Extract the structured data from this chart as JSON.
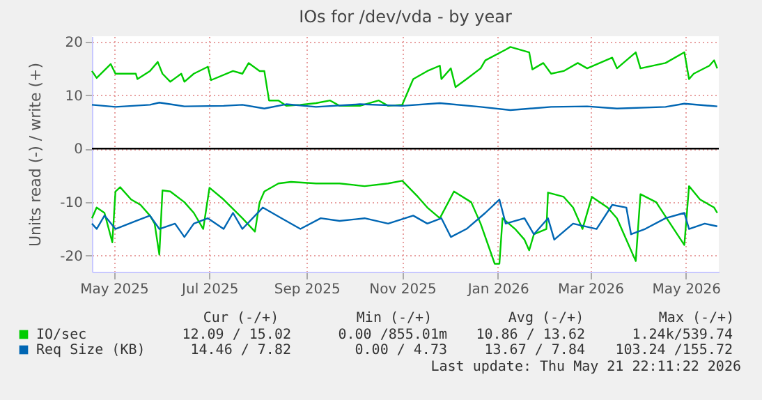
{
  "chart_data": {
    "type": "line",
    "title": "IOs for /dev/vda - by year",
    "ylabel": "Units read (-) / write (+)",
    "xlim": [
      "2025-04-17",
      "2026-05-22"
    ],
    "xticks": [
      {
        "value": "2025-05-01",
        "label": "May 2025"
      },
      {
        "value": "2025-07-01",
        "label": "Jul 2025"
      },
      {
        "value": "2025-09-01",
        "label": "Sep 2025"
      },
      {
        "value": "2025-11-01",
        "label": "Nov 2025"
      },
      {
        "value": "2026-01-01",
        "label": "Jan 2026"
      },
      {
        "value": "2026-03-01",
        "label": "Mar 2026"
      },
      {
        "value": "2026-05-01",
        "label": "May 2026"
      }
    ],
    "ylim": [
      -23,
      21
    ],
    "yticks": [
      -20,
      -10,
      0,
      10,
      20
    ],
    "grid": true,
    "legend": "bottom",
    "ref_lines": [
      {
        "axis": "y",
        "value": 0,
        "color": "#000000"
      }
    ],
    "series": [
      {
        "name": "IO/sec",
        "color": "#00cc00",
        "x": [
          "2025-04-17",
          "2025-04-20",
          "2025-04-29",
          "2025-05-02",
          "2025-05-15",
          "2025-05-16",
          "2025-05-24",
          "2025-05-29",
          "2025-06-01",
          "2025-06-06",
          "2025-06-13",
          "2025-06-15",
          "2025-06-21",
          "2025-06-30",
          "2025-07-02",
          "2025-07-16",
          "2025-07-22",
          "2025-07-26",
          "2025-08-02",
          "2025-08-05",
          "2025-08-08",
          "2025-08-14",
          "2025-08-19",
          "2025-08-28",
          "2025-09-07",
          "2025-09-16",
          "2025-09-22",
          "2025-10-05",
          "2025-10-17",
          "2025-10-23",
          "2025-11-01",
          "2025-11-08",
          "2025-11-17",
          "2025-11-25",
          "2025-11-26",
          "2025-12-02",
          "2025-12-05",
          "2025-12-12",
          "2025-12-21",
          "2025-12-24",
          "2026-01-06",
          "2026-01-09",
          "2026-01-21",
          "2026-01-23",
          "2026-01-30",
          "2026-02-04",
          "2026-02-12",
          "2026-02-21",
          "2026-02-27",
          "2026-03-15",
          "2026-03-18",
          "2026-03-30",
          "2026-04-02",
          "2026-04-18",
          "2026-04-30",
          "2026-05-03",
          "2026-05-06",
          "2026-05-16",
          "2026-05-19",
          "2026-05-21"
        ],
        "values": [
          14.5,
          13.2,
          15.8,
          14,
          14,
          13,
          14.5,
          16.2,
          14,
          12.5,
          14,
          12.5,
          14,
          15.3,
          12.8,
          14.5,
          14,
          16,
          14.5,
          14.5,
          9,
          9,
          8,
          8.2,
          8.5,
          9,
          8,
          8,
          9,
          8,
          8.2,
          13,
          14.5,
          15.5,
          13,
          15,
          11.5,
          13,
          15,
          16.5,
          18.5,
          19,
          18,
          14.8,
          16,
          14,
          14.5,
          16,
          15,
          17,
          15,
          18,
          15,
          16,
          18,
          13,
          14,
          15.5,
          16.5,
          15
        ]
      },
      {
        "name": "Req Size (KB)",
        "color": "#0066b3",
        "x": [
          "2025-04-17",
          "2025-05-02",
          "2025-05-24",
          "2025-05-30",
          "2025-06-15",
          "2025-07-10",
          "2025-07-22",
          "2025-08-05",
          "2025-08-19",
          "2025-09-07",
          "2025-10-05",
          "2025-11-01",
          "2025-11-25",
          "2025-12-21",
          "2026-01-09",
          "2026-02-04",
          "2026-02-27",
          "2026-03-18",
          "2026-04-18",
          "2026-04-30",
          "2026-05-21"
        ],
        "values": [
          8.2,
          7.8,
          8.2,
          8.6,
          7.9,
          8,
          8.2,
          7.5,
          8.3,
          7.8,
          8.3,
          8,
          8.5,
          7.8,
          7.2,
          7.8,
          7.9,
          7.5,
          7.8,
          8.4,
          7.9
        ]
      },
      {
        "color": "#00cc00",
        "x": [
          "2025-04-17",
          "2025-04-20",
          "2025-04-25",
          "2025-04-30",
          "2025-05-02",
          "2025-05-05",
          "2025-05-12",
          "2025-05-18",
          "2025-05-24",
          "2025-05-27",
          "2025-05-30",
          "2025-06-01",
          "2025-06-06",
          "2025-06-15",
          "2025-06-21",
          "2025-06-27",
          "2025-07-01",
          "2025-07-10",
          "2025-07-22",
          "2025-07-30",
          "2025-08-02",
          "2025-08-05",
          "2025-08-14",
          "2025-08-22",
          "2025-09-07",
          "2025-09-22",
          "2025-10-08",
          "2025-10-23",
          "2025-11-01",
          "2025-11-11",
          "2025-11-17",
          "2025-11-25",
          "2025-12-04",
          "2025-12-15",
          "2025-12-21",
          "2025-12-27",
          "2025-12-30",
          "2026-01-02",
          "2026-01-04",
          "2026-01-12",
          "2026-01-18",
          "2026-01-21",
          "2026-01-24",
          "2026-02-01",
          "2026-02-02",
          "2026-02-12",
          "2026-02-18",
          "2026-02-24",
          "2026-03-02",
          "2026-03-12",
          "2026-03-18",
          "2026-03-24",
          "2026-03-30",
          "2026-04-02",
          "2026-04-12",
          "2026-04-21",
          "2026-04-30",
          "2026-05-03",
          "2026-05-10",
          "2026-05-19",
          "2026-05-21"
        ],
        "values": [
          -13,
          -11,
          -12,
          -17.5,
          -8,
          -7.2,
          -9.5,
          -10.5,
          -12.5,
          -14,
          -19.8,
          -7.8,
          -8,
          -10,
          -12,
          -15,
          -7.3,
          -9.5,
          -13,
          -15.5,
          -10,
          -8,
          -6.5,
          -6.2,
          -6.5,
          -6.5,
          -7,
          -6.5,
          -6,
          -9,
          -11,
          -13,
          -8,
          -10,
          -14,
          -19,
          -21.5,
          -21.5,
          -13,
          -15,
          -17,
          -19,
          -16,
          -15,
          -8.2,
          -9,
          -11,
          -15,
          -9,
          -11,
          -13,
          -17,
          -21,
          -8.5,
          -10,
          -14,
          -18,
          -7,
          -9.5,
          -11,
          -12
        ]
      },
      {
        "color": "#0066b3",
        "x": [
          "2025-04-17",
          "2025-04-20",
          "2025-04-25",
          "2025-05-02",
          "2025-05-15",
          "2025-05-24",
          "2025-05-30",
          "2025-06-09",
          "2025-06-15",
          "2025-06-21",
          "2025-06-30",
          "2025-07-10",
          "2025-07-16",
          "2025-07-22",
          "2025-08-04",
          "2025-08-16",
          "2025-08-28",
          "2025-09-10",
          "2025-09-22",
          "2025-10-08",
          "2025-10-23",
          "2025-11-08",
          "2025-11-17",
          "2025-11-26",
          "2025-12-02",
          "2025-12-12",
          "2025-12-24",
          "2026-01-02",
          "2026-01-06",
          "2026-01-18",
          "2026-01-24",
          "2026-02-02",
          "2026-02-06",
          "2026-02-18",
          "2026-03-05",
          "2026-03-15",
          "2026-03-24",
          "2026-03-27",
          "2026-04-05",
          "2026-04-18",
          "2026-04-30",
          "2026-05-03",
          "2026-05-13",
          "2026-05-21"
        ],
        "values": [
          -14,
          -15,
          -12.5,
          -15,
          -13.5,
          -12.5,
          -15,
          -14,
          -16.5,
          -14,
          -13,
          -15,
          -12,
          -15,
          -11,
          -13,
          -15,
          -13,
          -13.5,
          -13,
          -14,
          -12.5,
          -14,
          -13,
          -16.5,
          -15,
          -12,
          -9.5,
          -14,
          -13,
          -16,
          -13,
          -17,
          -14,
          -15,
          -10.5,
          -11,
          -16,
          -15,
          -13,
          -12,
          -15,
          -14,
          -14.5
        ]
      }
    ],
    "annotations": [
      "Cur (-/+)",
      "Min (-/+)",
      "Avg (-/+)",
      "Max (-/+)",
      "12.09 / 15.02",
      "0.00 /855.01m",
      "10.86 / 13.62",
      "1.24k/539.74",
      "14.46 /  7.82",
      "0.00 /  4.73",
      "13.67 /  7.84",
      "103.24 /155.72",
      "Last update: Thu May 21 22:11:22 2026"
    ]
  }
}
